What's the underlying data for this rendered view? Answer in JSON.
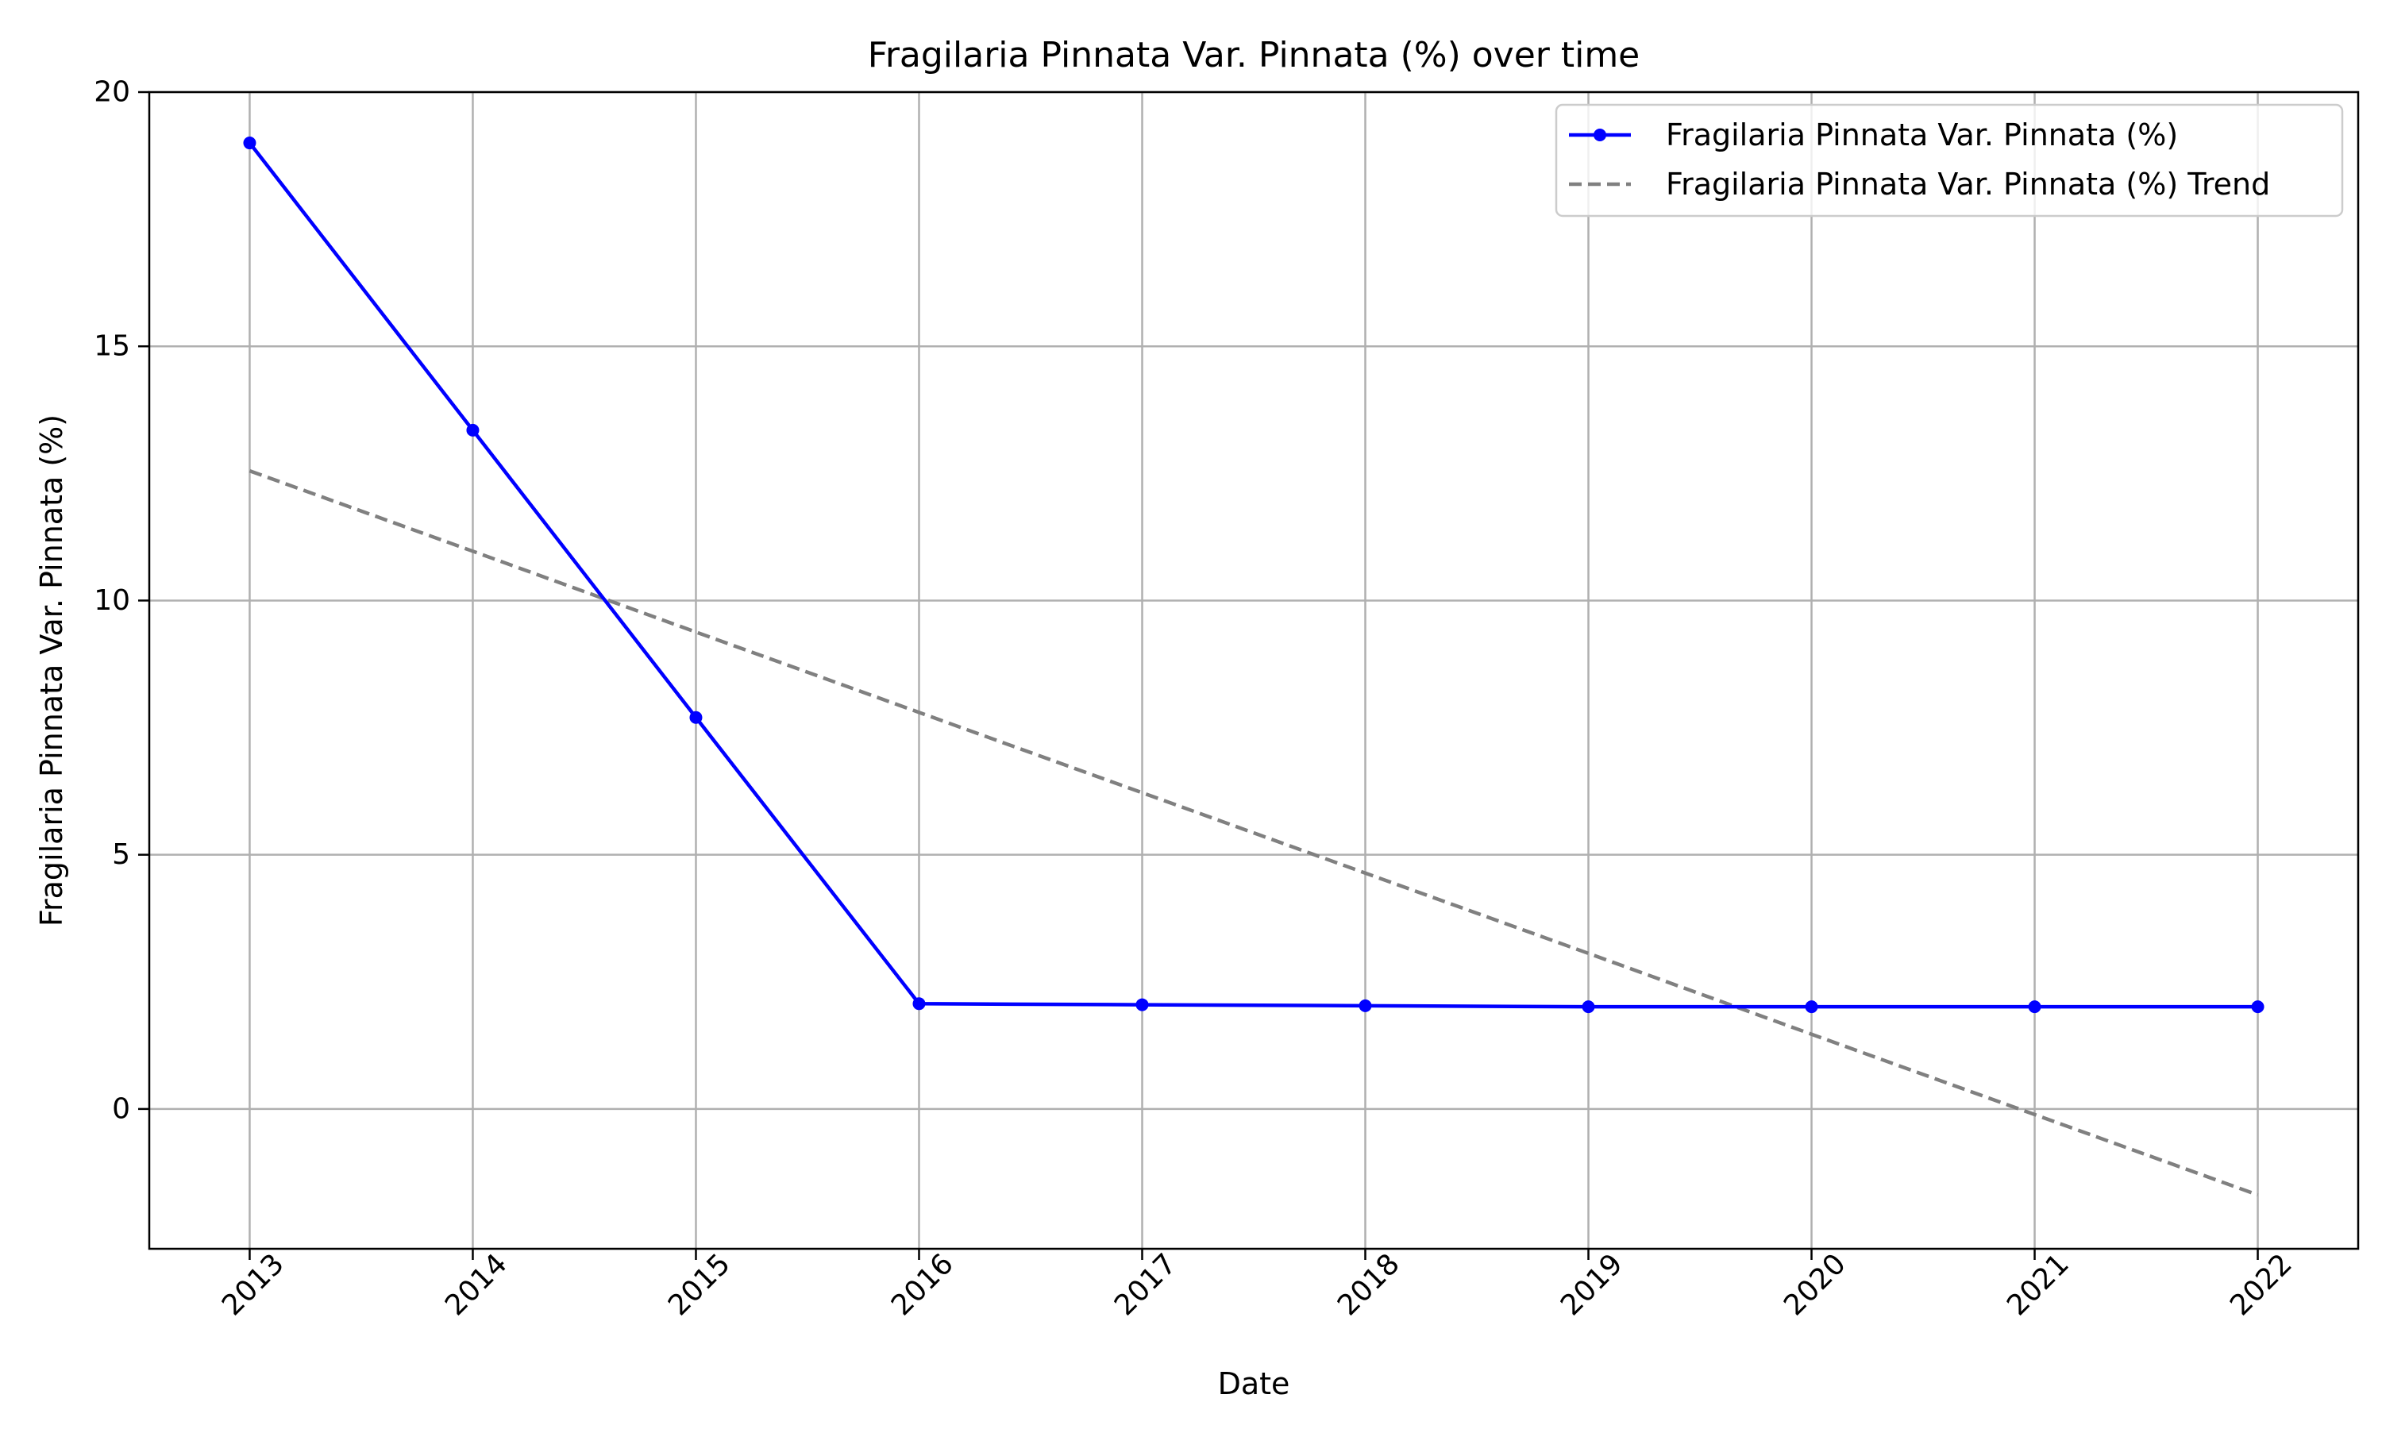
{
  "chart_data": {
    "type": "line",
    "title": "Fragilaria Pinnata Var. Pinnata (%) over time",
    "xlabel": "Date",
    "ylabel": "Fragilaria Pinnata Var. Pinnata (%)",
    "x": [
      "2013",
      "2014",
      "2015",
      "2016",
      "2017",
      "2018",
      "2019",
      "2020",
      "2021",
      "2022"
    ],
    "x_tick_labels": [
      "2013",
      "2014",
      "2015",
      "2016",
      "2017",
      "2018",
      "2019",
      "2020",
      "2021",
      "2022"
    ],
    "xlim": [
      2012.55,
      2022.45
    ],
    "ylim": [
      -2.75,
      20.0
    ],
    "y_ticks": [
      0,
      5,
      10,
      15,
      20
    ],
    "y_tick_labels": [
      "0",
      "5",
      "10",
      "15",
      "20"
    ],
    "grid": true,
    "legend_position": "top-right",
    "series": [
      {
        "name": "Fragilaria Pinnata Var. Pinnata (%)",
        "color": "#0000ff",
        "style": "solid-with-markers",
        "values": [
          19.0,
          13.35,
          7.7,
          2.07,
          2.05,
          2.03,
          2.01,
          2.01,
          2.01,
          2.01
        ]
      },
      {
        "name": "Fragilaria Pinnata Var. Pinnata (%) Trend",
        "color": "#808080",
        "style": "dashed",
        "values": [
          12.55,
          10.97,
          9.38,
          7.8,
          6.22,
          4.64,
          3.06,
          1.47,
          -0.11,
          -1.69
        ]
      }
    ]
  }
}
